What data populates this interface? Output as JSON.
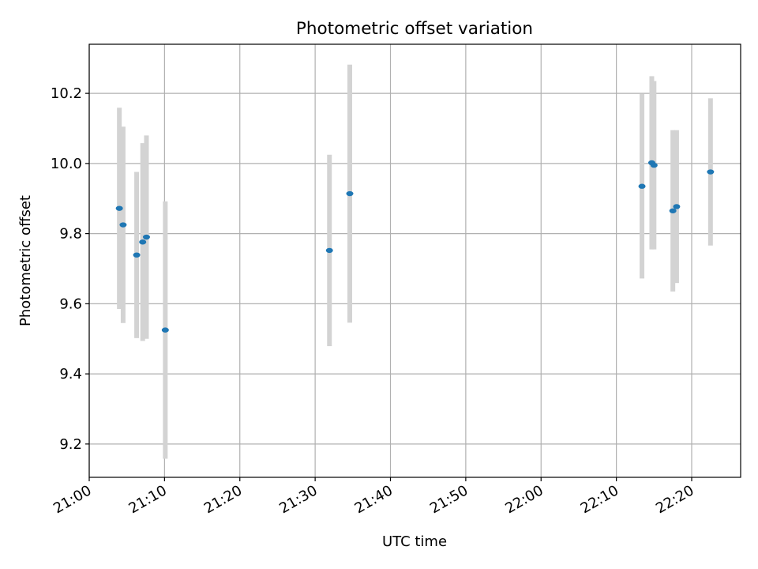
{
  "chart_data": {
    "type": "scatter",
    "title": "Photometric offset variation",
    "xlabel": "UTC time",
    "ylabel": "Photometric offset",
    "xlim": [
      "21:00",
      "22:26.5"
    ],
    "ylim": [
      9.105,
      10.34
    ],
    "x_ticks": [
      "21:00",
      "21:10",
      "21:20",
      "21:30",
      "21:40",
      "21:50",
      "22:00",
      "22:10",
      "22:20"
    ],
    "y_ticks": [
      "9.2",
      "9.4",
      "9.6",
      "9.8",
      "10.0",
      "10.2"
    ],
    "grid": true,
    "point_color": "#1f77b4",
    "errorbar_color": "#d3d3d3",
    "points": [
      {
        "x": "21:04.0",
        "y": 9.872,
        "err": 0.287
      },
      {
        "x": "21:04.5",
        "y": 9.825,
        "err": 0.28
      },
      {
        "x": "21:06.3",
        "y": 9.739,
        "err": 0.237
      },
      {
        "x": "21:07.1",
        "y": 9.776,
        "err": 0.282
      },
      {
        "x": "21:07.6",
        "y": 9.79,
        "err": 0.29
      },
      {
        "x": "21:10.1",
        "y": 9.525,
        "err": 0.367
      },
      {
        "x": "21:31.9",
        "y": 9.752,
        "err": 0.273
      },
      {
        "x": "21:34.6",
        "y": 9.914,
        "err": 0.368
      },
      {
        "x": "22:13.4",
        "y": 9.935,
        "err": 0.263
      },
      {
        "x": "22:14.7",
        "y": 10.002,
        "err": 0.247
      },
      {
        "x": "22:15.0",
        "y": 9.995,
        "err": 0.24
      },
      {
        "x": "22:17.5",
        "y": 9.865,
        "err": 0.23
      },
      {
        "x": "22:18.0",
        "y": 9.877,
        "err": 0.218
      },
      {
        "x": "22:22.5",
        "y": 9.976,
        "err": 0.21
      }
    ]
  }
}
